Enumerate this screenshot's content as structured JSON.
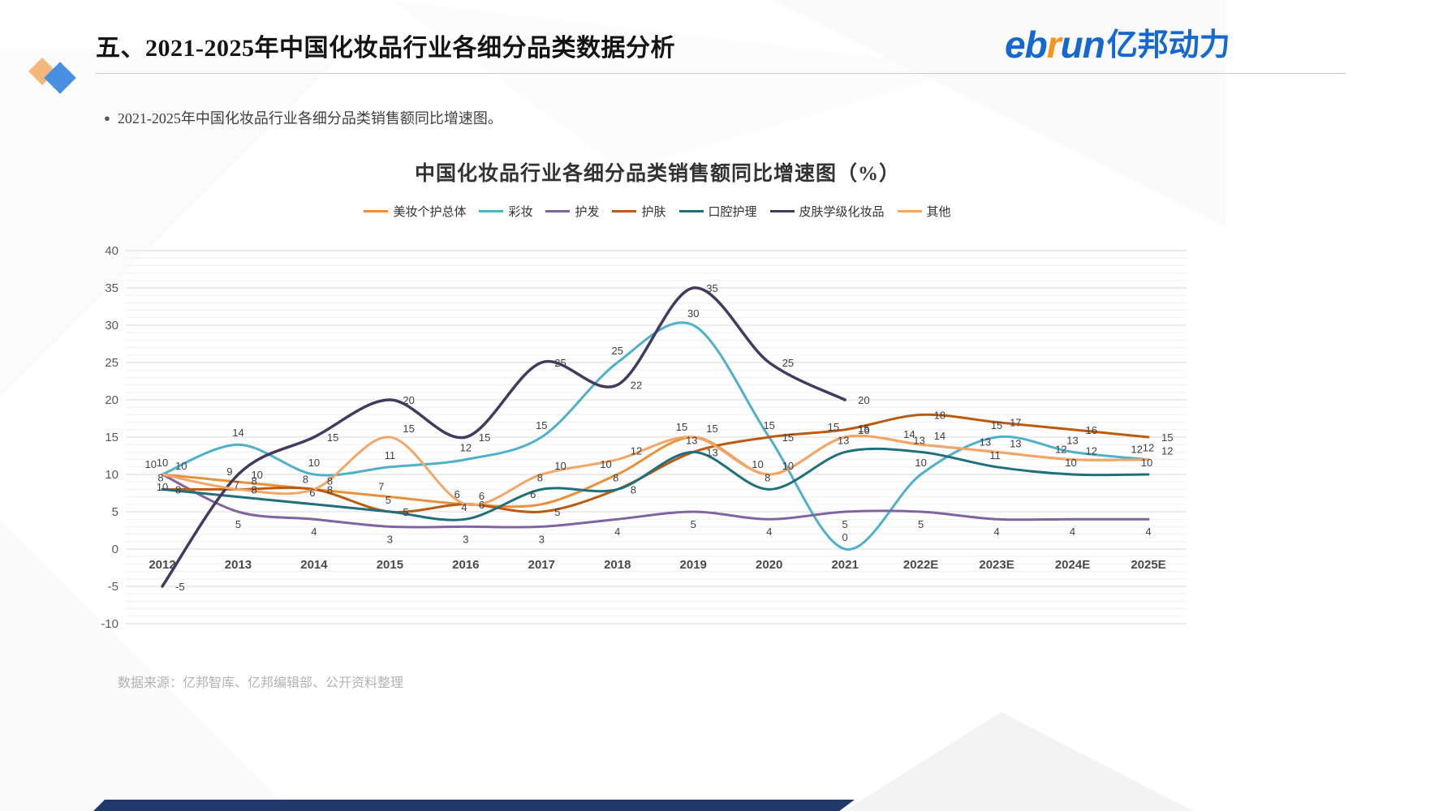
{
  "header": {
    "section_title": "五、2021-2025年中国化妆品行业各细分品类数据分析",
    "logo_eb": "eb",
    "logo_r": "r",
    "logo_un": "un",
    "logo_cn": "亿邦动力"
  },
  "bullet": {
    "marker": "●",
    "text": "2021-2025年中国化妆品行业各细分品类销售额同比增速图。"
  },
  "footer": {
    "source": "数据来源：亿邦智库、亿邦编辑部、公开资料整理"
  },
  "chart_data": {
    "type": "line",
    "title": "中国化妆品行业各细分品类销售额同比增速图（%）",
    "unit": "%",
    "categories": [
      "2012",
      "2013",
      "2014",
      "2015",
      "2016",
      "2017",
      "2018",
      "2019",
      "2020",
      "2021",
      "2022E",
      "2023E",
      "2024E",
      "2025E"
    ],
    "ylim": [
      -10,
      40
    ],
    "ytick_step": 5,
    "yticks": [
      40,
      35,
      30,
      25,
      20,
      15,
      10,
      5,
      0,
      -5,
      -10
    ],
    "grid": true,
    "legend_position": "top",
    "series": [
      {
        "name": "美妆个护总体",
        "color": "#E8913A",
        "values": [
          10,
          9,
          8,
          7,
          6,
          6,
          10,
          15,
          10,
          15,
          14,
          13,
          12,
          12
        ]
      },
      {
        "name": "彩妆",
        "color": "#4FB0CA",
        "values": [
          10,
          14,
          10,
          11,
          12,
          15,
          25,
          30,
          15,
          0,
          10,
          15,
          13,
          12
        ]
      },
      {
        "name": "护发",
        "color": "#8064A2",
        "values": [
          10,
          5,
          4,
          3,
          3,
          3,
          4,
          5,
          4,
          5,
          5,
          4,
          4,
          4
        ]
      },
      {
        "name": "护肤",
        "color": "#BC5A10",
        "values": [
          8,
          8,
          8,
          5,
          6,
          5,
          8,
          13,
          15,
          16,
          18,
          17,
          16,
          15
        ]
      },
      {
        "name": "口腔护理",
        "color": "#20707C",
        "values": [
          8,
          7,
          6,
          5,
          4,
          8,
          8,
          13,
          8,
          13,
          13,
          11,
          10,
          10
        ]
      },
      {
        "name": "皮肤学级化妆品",
        "color": "#443A60",
        "values": [
          -5,
          10,
          15,
          20,
          15,
          25,
          22,
          35,
          25,
          20,
          null,
          null,
          null,
          null
        ]
      },
      {
        "name": "其他",
        "color": "#F2A667",
        "values": [
          10,
          8,
          8,
          15,
          6,
          10,
          12,
          15,
          10,
          15,
          14,
          13,
          12,
          12
        ]
      }
    ]
  }
}
